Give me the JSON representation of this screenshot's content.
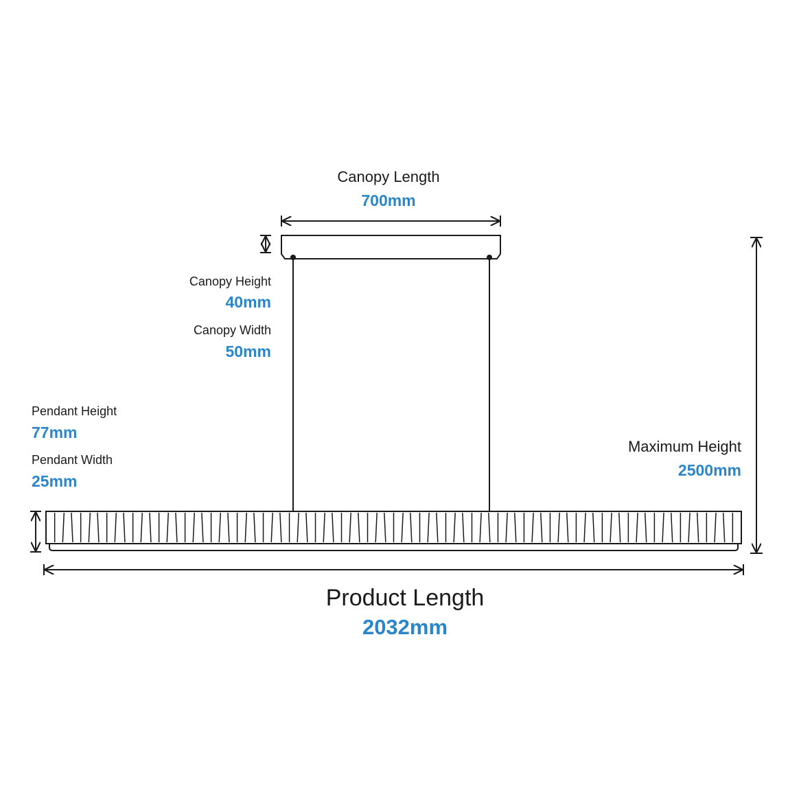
{
  "dimensions": {
    "canopy_length": {
      "label": "Canopy Length",
      "value": "700mm"
    },
    "canopy_height": {
      "label": "Canopy Height",
      "value": "40mm"
    },
    "canopy_width": {
      "label": "Canopy Width",
      "value": "50mm"
    },
    "pendant_height": {
      "label": "Pendant Height",
      "value": "77mm"
    },
    "pendant_width": {
      "label": "Pendant Width",
      "value": "25mm"
    },
    "maximum_height": {
      "label": "Maximum Height",
      "value": "2500mm"
    },
    "product_length": {
      "label": "Product Length",
      "value": "2032mm"
    }
  }
}
